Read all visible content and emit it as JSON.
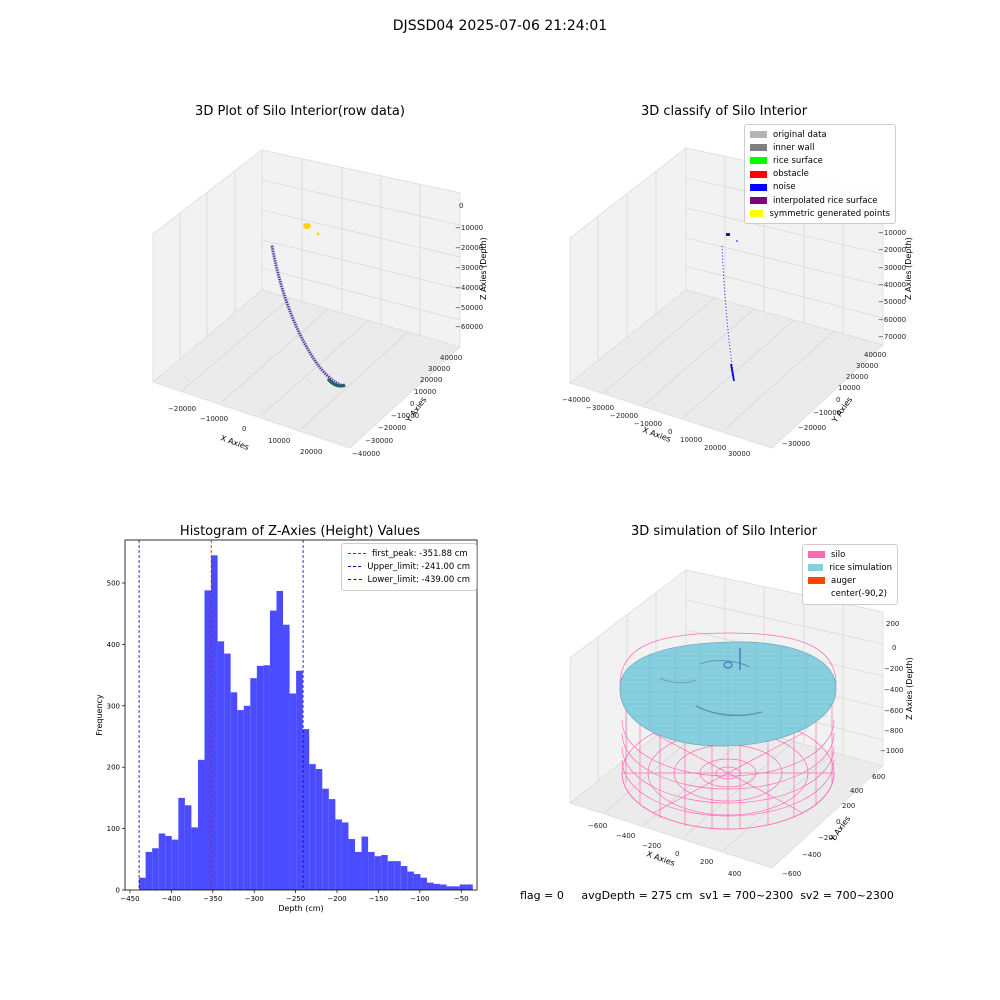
{
  "suptitle": "DJSSD04 2025-07-06 21:24:01",
  "footer": "flag = 0     avgDepth = 275 cm  sv1 = 700~2300  sv2 = 700~2300",
  "colors": {
    "histogram_bar": "#4b4bff",
    "first_peak": "#ff0000",
    "limit_lines": "#0000cc",
    "silo": "#ff69b4",
    "rice": "#87cedf",
    "auger": "#ff4500"
  },
  "chart_data": [
    {
      "type": "scatter3d",
      "title": "3D Plot of Silo Interior(row data)",
      "xlabel": "X Axies",
      "ylabel": "Y Axies",
      "zlabel": "Z Axies (Depth)",
      "x_ticks": [
        "−20000",
        "−10000",
        "0",
        "10000",
        "20000"
      ],
      "y_ticks": [
        "−40000",
        "−30000",
        "−20000",
        "−10000",
        "0",
        "10000",
        "20000",
        "30000",
        "40000"
      ],
      "z_ticks": [
        "0",
        "−10000",
        "−20000",
        "−30000",
        "−40000",
        "−50000",
        "−60000"
      ]
    },
    {
      "type": "scatter3d",
      "title": "3D classify of Silo Interior",
      "xlabel": "X Axies",
      "ylabel": "Y Axies",
      "zlabel": "Z Axies (Depth)",
      "x_ticks": [
        "−40000",
        "−30000",
        "−20000",
        "−10000",
        "0",
        "10000",
        "20000",
        "30000"
      ],
      "y_ticks": [
        "−30000",
        "−20000",
        "−10000",
        "0",
        "10000",
        "20000",
        "30000",
        "40000"
      ],
      "z_ticks": [
        "0",
        "−10000",
        "−20000",
        "−30000",
        "−40000",
        "−50000",
        "−60000",
        "−70000"
      ],
      "legend": [
        {
          "label": "original data",
          "color": "#b4b4b4"
        },
        {
          "label": "inner wall",
          "color": "#808080"
        },
        {
          "label": "rice surface",
          "color": "#00ff00"
        },
        {
          "label": "obstacle",
          "color": "#ff0000"
        },
        {
          "label": "noise",
          "color": "#0000ff"
        },
        {
          "label": "interpolated rice surface",
          "color": "#800080"
        },
        {
          "label": "symmetric generated points",
          "color": "#ffff00"
        }
      ]
    },
    {
      "type": "bar",
      "title": "Histogram of Z-Axies (Height) Values",
      "xlabel": "Depth (cm)",
      "ylabel": "Frequency",
      "xlim": [
        -456,
        -31
      ],
      "ylim": [
        0,
        570
      ],
      "x_ticks": [
        -450,
        -400,
        -350,
        -300,
        -250,
        -200,
        -150,
        -100,
        -50
      ],
      "y_ticks": [
        0,
        100,
        200,
        300,
        400,
        500
      ],
      "bin_start": -439,
      "bin_width": 7.9,
      "values": [
        20,
        62,
        68,
        92,
        88,
        82,
        150,
        138,
        102,
        212,
        488,
        545,
        405,
        385,
        322,
        293,
        300,
        345,
        365,
        366,
        455,
        487,
        432,
        320,
        357,
        262,
        205,
        197,
        165,
        148,
        115,
        110,
        83,
        62,
        87,
        62,
        55,
        57,
        47,
        47,
        39,
        30,
        26,
        20,
        12,
        10,
        9,
        6,
        6,
        9,
        9
      ],
      "vlines": [
        {
          "x": -351.88,
          "color": "#ff0000",
          "label": "first_peak: -351.88 cm"
        },
        {
          "x": -241.0,
          "color": "#0000cc",
          "label": "Upper_limit: -241.00 cm"
        },
        {
          "x": -439.0,
          "color": "#0000cc",
          "label": "Lower_limit: -439.00 cm"
        }
      ],
      "legend_position": "top-right"
    },
    {
      "type": "surface3d",
      "title": "3D simulation of Silo Interior",
      "xlabel": "X Axies",
      "ylabel": "Y Axies",
      "zlabel": "Z Axies (Depth)",
      "x_ticks": [
        "−600",
        "−400",
        "−200",
        "0",
        "200",
        "400"
      ],
      "y_ticks": [
        "−600",
        "−400",
        "−200",
        "0",
        "200",
        "400",
        "600"
      ],
      "z_ticks": [
        "200",
        "0",
        "−200",
        "−400",
        "−600",
        "−800",
        "−1000"
      ],
      "legend": [
        {
          "label": "silo",
          "color": "#ff69b4"
        },
        {
          "label": "rice simulation",
          "color": "#87cedf"
        },
        {
          "label": "auger",
          "color": "#ff4500"
        },
        {
          "label": "center(-90,2)",
          "color": ""
        }
      ]
    }
  ]
}
